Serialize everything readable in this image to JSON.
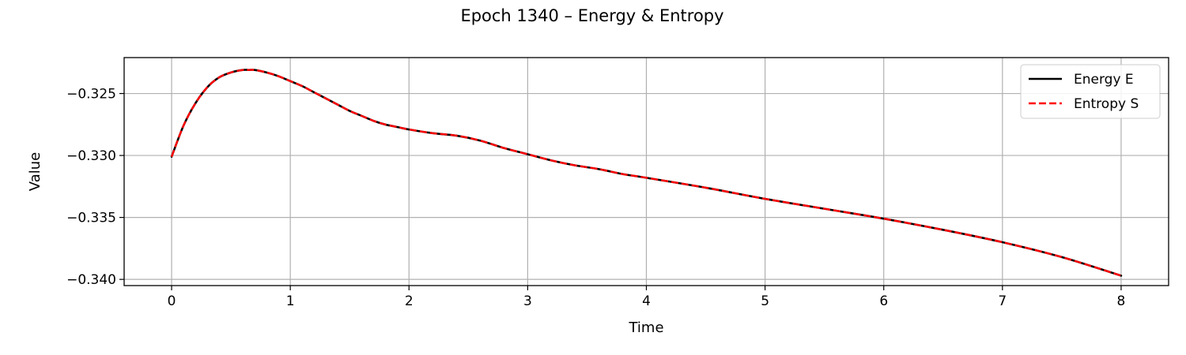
{
  "chart_data": {
    "type": "line",
    "title": "Epoch 1340 – Energy & Entropy",
    "xlabel": "Time",
    "ylabel": "Value",
    "xlim": [
      -0.4,
      8.4
    ],
    "ylim": [
      -0.3405,
      -0.3221
    ],
    "xticks": [
      0,
      1,
      2,
      3,
      4,
      5,
      6,
      7,
      8
    ],
    "xtick_labels": [
      "0",
      "1",
      "2",
      "3",
      "4",
      "5",
      "6",
      "7",
      "8"
    ],
    "yticks": [
      -0.325,
      -0.33,
      -0.335,
      -0.34
    ],
    "ytick_labels": [
      "−0.325",
      "−0.330",
      "−0.335",
      "−0.340"
    ],
    "grid": true,
    "legend_position": "top-right",
    "series": [
      {
        "name": "Energy E",
        "color": "#000000",
        "style": "solid",
        "x": [
          0,
          0.1,
          0.2,
          0.3,
          0.4,
          0.5,
          0.6,
          0.65,
          0.7,
          0.8,
          0.9,
          1.0,
          1.1,
          1.2,
          1.3,
          1.4,
          1.5,
          1.6,
          1.7,
          1.8,
          1.9,
          2.0,
          2.2,
          2.4,
          2.6,
          2.8,
          3.0,
          3.2,
          3.4,
          3.6,
          3.8,
          4.0,
          4.5,
          5.0,
          5.5,
          6.0,
          6.5,
          7.0,
          7.5,
          8.0
        ],
        "y": [
          -0.3301,
          -0.3276,
          -0.3258,
          -0.3245,
          -0.3237,
          -0.3233,
          -0.3231,
          -0.3231,
          -0.3231,
          -0.3233,
          -0.3236,
          -0.324,
          -0.3244,
          -0.3249,
          -0.3254,
          -0.3259,
          -0.3264,
          -0.3268,
          -0.3272,
          -0.3275,
          -0.3277,
          -0.3279,
          -0.3282,
          -0.3284,
          -0.3288,
          -0.3294,
          -0.3299,
          -0.3304,
          -0.3308,
          -0.3311,
          -0.3315,
          -0.3318,
          -0.3326,
          -0.3335,
          -0.3343,
          -0.3351,
          -0.336,
          -0.337,
          -0.3382,
          -0.3397
        ]
      },
      {
        "name": "Entropy S",
        "color": "#ff0000",
        "style": "dashed",
        "x": [
          0,
          0.1,
          0.2,
          0.3,
          0.4,
          0.5,
          0.6,
          0.65,
          0.7,
          0.8,
          0.9,
          1.0,
          1.1,
          1.2,
          1.3,
          1.4,
          1.5,
          1.6,
          1.7,
          1.8,
          1.9,
          2.0,
          2.2,
          2.4,
          2.6,
          2.8,
          3.0,
          3.2,
          3.4,
          3.6,
          3.8,
          4.0,
          4.5,
          5.0,
          5.5,
          6.0,
          6.5,
          7.0,
          7.5,
          8.0
        ],
        "y": [
          -0.3301,
          -0.3276,
          -0.3258,
          -0.3245,
          -0.3237,
          -0.3233,
          -0.3231,
          -0.3231,
          -0.3231,
          -0.3233,
          -0.3236,
          -0.324,
          -0.3244,
          -0.3249,
          -0.3254,
          -0.3259,
          -0.3264,
          -0.3268,
          -0.3272,
          -0.3275,
          -0.3277,
          -0.3279,
          -0.3282,
          -0.3284,
          -0.3288,
          -0.3294,
          -0.3299,
          -0.3304,
          -0.3308,
          -0.3311,
          -0.3315,
          -0.3318,
          -0.3326,
          -0.3335,
          -0.3343,
          -0.3351,
          -0.336,
          -0.337,
          -0.3382,
          -0.3397
        ]
      }
    ]
  }
}
